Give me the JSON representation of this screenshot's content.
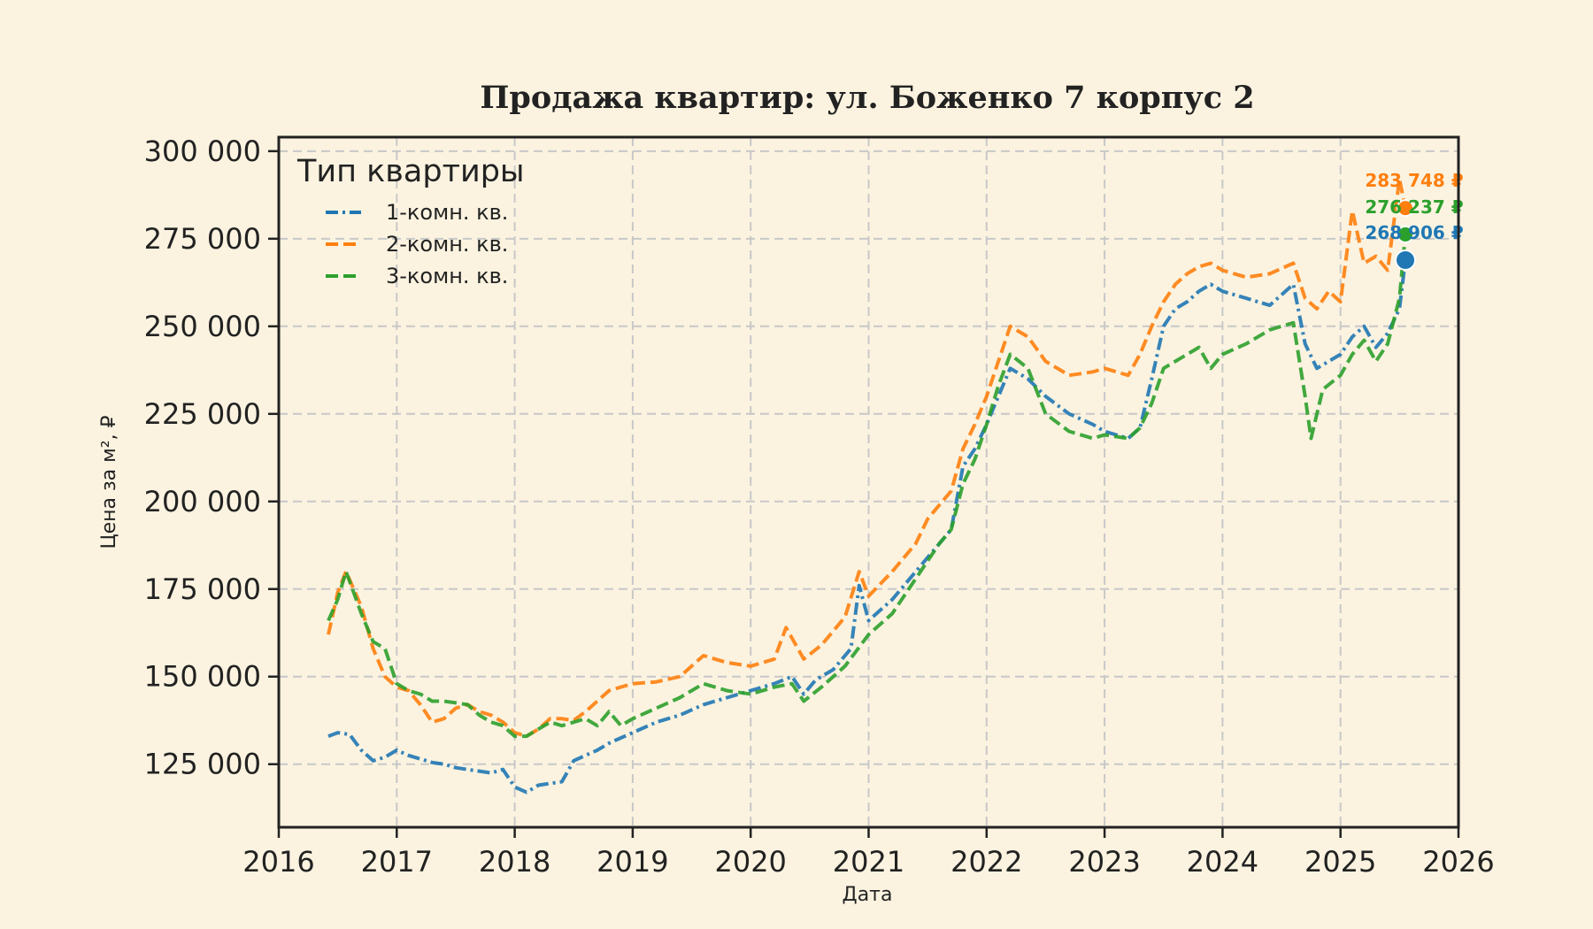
{
  "chart_data": {
    "type": "line",
    "title": "Продажа квартир: ул. Боженко 7 корпус 2",
    "xlabel": "Дата",
    "ylabel": "Цена за м², ₽",
    "xlim": [
      2016.0,
      2026.0
    ],
    "ylim": [
      107000,
      304000
    ],
    "x_ticks": [
      "2016",
      "2017",
      "2018",
      "2019",
      "2020",
      "2021",
      "2022",
      "2023",
      "2024",
      "2025",
      "2026"
    ],
    "y_ticks": [
      {
        "value": 125000,
        "label": "125 000"
      },
      {
        "value": 150000,
        "label": "150 000"
      },
      {
        "value": 175000,
        "label": "175 000"
      },
      {
        "value": 200000,
        "label": "200 000"
      },
      {
        "value": 225000,
        "label": "225 000"
      },
      {
        "value": 250000,
        "label": "250 000"
      },
      {
        "value": 275000,
        "label": "275 000"
      },
      {
        "value": 300000,
        "label": "300 000"
      }
    ],
    "grid": true,
    "legend": {
      "title": "Тип квартиры",
      "placement": "top-left"
    },
    "series": [
      {
        "name": "1-комн. кв.",
        "color": "#1f77b4",
        "dash": "dashdot",
        "points": [
          [
            2016.42,
            133000
          ],
          [
            2016.5,
            134000
          ],
          [
            2016.6,
            133500
          ],
          [
            2016.7,
            129000
          ],
          [
            2016.8,
            126000
          ],
          [
            2016.9,
            127000
          ],
          [
            2017.0,
            129000
          ],
          [
            2017.1,
            127500
          ],
          [
            2017.2,
            126500
          ],
          [
            2017.3,
            125500
          ],
          [
            2017.4,
            125000
          ],
          [
            2017.5,
            124000
          ],
          [
            2017.6,
            123500
          ],
          [
            2017.7,
            123000
          ],
          [
            2017.8,
            122500
          ],
          [
            2017.9,
            123500
          ],
          [
            2018.0,
            118500
          ],
          [
            2018.1,
            117000
          ],
          [
            2018.2,
            119000
          ],
          [
            2018.3,
            119500
          ],
          [
            2018.4,
            120000
          ],
          [
            2018.5,
            126000
          ],
          [
            2018.6,
            127500
          ],
          [
            2018.7,
            129000
          ],
          [
            2018.8,
            131000
          ],
          [
            2018.9,
            132500
          ],
          [
            2019.0,
            134000
          ],
          [
            2019.2,
            137000
          ],
          [
            2019.4,
            139000
          ],
          [
            2019.6,
            142000
          ],
          [
            2019.8,
            144000
          ],
          [
            2020.0,
            146000
          ],
          [
            2020.2,
            148000
          ],
          [
            2020.35,
            150000
          ],
          [
            2020.45,
            145000
          ],
          [
            2020.55,
            149000
          ],
          [
            2020.7,
            152000
          ],
          [
            2020.85,
            158000
          ],
          [
            2020.92,
            176000
          ],
          [
            2021.0,
            166000
          ],
          [
            2021.2,
            172000
          ],
          [
            2021.4,
            180000
          ],
          [
            2021.6,
            188000
          ],
          [
            2021.7,
            192000
          ],
          [
            2021.8,
            210000
          ],
          [
            2021.9,
            215000
          ],
          [
            2022.0,
            222000
          ],
          [
            2022.1,
            230000
          ],
          [
            2022.2,
            238000
          ],
          [
            2022.35,
            235000
          ],
          [
            2022.5,
            230000
          ],
          [
            2022.7,
            225000
          ],
          [
            2022.9,
            222000
          ],
          [
            2023.0,
            220000
          ],
          [
            2023.2,
            218000
          ],
          [
            2023.3,
            221000
          ],
          [
            2023.4,
            235000
          ],
          [
            2023.5,
            250000
          ],
          [
            2023.6,
            255000
          ],
          [
            2023.7,
            257000
          ],
          [
            2023.8,
            260000
          ],
          [
            2023.9,
            262000
          ],
          [
            2024.0,
            260000
          ],
          [
            2024.2,
            258000
          ],
          [
            2024.4,
            256000
          ],
          [
            2024.6,
            262000
          ],
          [
            2024.7,
            245000
          ],
          [
            2024.8,
            238000
          ],
          [
            2024.9,
            240000
          ],
          [
            2025.0,
            242000
          ],
          [
            2025.1,
            247000
          ],
          [
            2025.2,
            250000
          ],
          [
            2025.3,
            244000
          ],
          [
            2025.4,
            248000
          ],
          [
            2025.5,
            255000
          ],
          [
            2025.55,
            268906
          ]
        ]
      },
      {
        "name": "2-комн. кв.",
        "color": "#ff7f0e",
        "dash": "dashed",
        "points": [
          [
            2016.42,
            162000
          ],
          [
            2016.5,
            174000
          ],
          [
            2016.57,
            180000
          ],
          [
            2016.7,
            170000
          ],
          [
            2016.8,
            158000
          ],
          [
            2016.9,
            150000
          ],
          [
            2017.0,
            147000
          ],
          [
            2017.1,
            146000
          ],
          [
            2017.2,
            142000
          ],
          [
            2017.3,
            137000
          ],
          [
            2017.4,
            138000
          ],
          [
            2017.5,
            141000
          ],
          [
            2017.6,
            142000
          ],
          [
            2017.7,
            140000
          ],
          [
            2017.8,
            139000
          ],
          [
            2017.9,
            137000
          ],
          [
            2018.0,
            134000
          ],
          [
            2018.1,
            133000
          ],
          [
            2018.2,
            135000
          ],
          [
            2018.3,
            138000
          ],
          [
            2018.4,
            138000
          ],
          [
            2018.5,
            137500
          ],
          [
            2018.6,
            140000
          ],
          [
            2018.7,
            143000
          ],
          [
            2018.8,
            146000
          ],
          [
            2018.9,
            147000
          ],
          [
            2019.0,
            148000
          ],
          [
            2019.2,
            148500
          ],
          [
            2019.4,
            150000
          ],
          [
            2019.6,
            156000
          ],
          [
            2019.8,
            154000
          ],
          [
            2020.0,
            153000
          ],
          [
            2020.2,
            155000
          ],
          [
            2020.3,
            164000
          ],
          [
            2020.45,
            155000
          ],
          [
            2020.6,
            159000
          ],
          [
            2020.8,
            167000
          ],
          [
            2020.92,
            180000
          ],
          [
            2021.0,
            173000
          ],
          [
            2021.2,
            180000
          ],
          [
            2021.4,
            188000
          ],
          [
            2021.5,
            195000
          ],
          [
            2021.6,
            199000
          ],
          [
            2021.7,
            203000
          ],
          [
            2021.8,
            215000
          ],
          [
            2021.9,
            222000
          ],
          [
            2022.0,
            230000
          ],
          [
            2022.1,
            240000
          ],
          [
            2022.2,
            250000
          ],
          [
            2022.35,
            247000
          ],
          [
            2022.5,
            240000
          ],
          [
            2022.7,
            236000
          ],
          [
            2022.9,
            237000
          ],
          [
            2023.0,
            238000
          ],
          [
            2023.2,
            236000
          ],
          [
            2023.3,
            242000
          ],
          [
            2023.4,
            250000
          ],
          [
            2023.5,
            257000
          ],
          [
            2023.6,
            262000
          ],
          [
            2023.7,
            265000
          ],
          [
            2023.8,
            267000
          ],
          [
            2023.9,
            268000
          ],
          [
            2024.0,
            266000
          ],
          [
            2024.2,
            264000
          ],
          [
            2024.4,
            265000
          ],
          [
            2024.6,
            268000
          ],
          [
            2024.7,
            258000
          ],
          [
            2024.8,
            255000
          ],
          [
            2024.9,
            260000
          ],
          [
            2025.0,
            257000
          ],
          [
            2025.1,
            283000
          ],
          [
            2025.2,
            268000
          ],
          [
            2025.3,
            270000
          ],
          [
            2025.4,
            266000
          ],
          [
            2025.5,
            292000
          ],
          [
            2025.55,
            283748
          ]
        ]
      },
      {
        "name": "3-комн. кв.",
        "color": "#2ca02c",
        "dash": "dashed",
        "points": [
          [
            2016.42,
            166000
          ],
          [
            2016.5,
            172000
          ],
          [
            2016.57,
            180000
          ],
          [
            2016.7,
            168000
          ],
          [
            2016.8,
            160000
          ],
          [
            2016.9,
            158000
          ],
          [
            2017.0,
            148000
          ],
          [
            2017.1,
            146000
          ],
          [
            2017.2,
            145000
          ],
          [
            2017.3,
            143000
          ],
          [
            2017.4,
            143000
          ],
          [
            2017.5,
            142500
          ],
          [
            2017.6,
            142000
          ],
          [
            2017.7,
            139000
          ],
          [
            2017.8,
            137000
          ],
          [
            2017.9,
            136000
          ],
          [
            2018.0,
            133000
          ],
          [
            2018.1,
            133000
          ],
          [
            2018.2,
            135000
          ],
          [
            2018.3,
            137000
          ],
          [
            2018.4,
            136000
          ],
          [
            2018.5,
            137000
          ],
          [
            2018.6,
            138000
          ],
          [
            2018.7,
            136000
          ],
          [
            2018.8,
            140000
          ],
          [
            2018.9,
            136000
          ],
          [
            2019.0,
            138000
          ],
          [
            2019.2,
            141000
          ],
          [
            2019.4,
            144000
          ],
          [
            2019.6,
            148000
          ],
          [
            2019.8,
            146000
          ],
          [
            2020.0,
            145000
          ],
          [
            2020.2,
            147000
          ],
          [
            2020.35,
            148000
          ],
          [
            2020.45,
            143000
          ],
          [
            2020.6,
            147000
          ],
          [
            2020.8,
            153000
          ],
          [
            2021.0,
            162000
          ],
          [
            2021.2,
            168000
          ],
          [
            2021.4,
            178000
          ],
          [
            2021.6,
            188000
          ],
          [
            2021.7,
            192000
          ],
          [
            2021.8,
            205000
          ],
          [
            2021.9,
            212000
          ],
          [
            2022.0,
            222000
          ],
          [
            2022.1,
            233000
          ],
          [
            2022.2,
            242000
          ],
          [
            2022.35,
            238000
          ],
          [
            2022.5,
            225000
          ],
          [
            2022.7,
            220000
          ],
          [
            2022.9,
            218000
          ],
          [
            2023.0,
            219000
          ],
          [
            2023.2,
            218000
          ],
          [
            2023.3,
            221000
          ],
          [
            2023.4,
            228000
          ],
          [
            2023.5,
            238000
          ],
          [
            2023.6,
            240000
          ],
          [
            2023.7,
            242000
          ],
          [
            2023.8,
            244000
          ],
          [
            2023.9,
            238000
          ],
          [
            2024.0,
            242000
          ],
          [
            2024.2,
            245000
          ],
          [
            2024.4,
            249000
          ],
          [
            2024.6,
            251000
          ],
          [
            2024.7,
            230000
          ],
          [
            2024.75,
            218000
          ],
          [
            2024.85,
            232000
          ],
          [
            2025.0,
            236000
          ],
          [
            2025.1,
            242000
          ],
          [
            2025.2,
            246000
          ],
          [
            2025.3,
            240000
          ],
          [
            2025.4,
            245000
          ],
          [
            2025.5,
            258000
          ],
          [
            2025.55,
            276237
          ]
        ]
      }
    ],
    "end_labels": [
      {
        "series": "2-комн. кв.",
        "value": 283748,
        "label": "283 748 ₽",
        "color": "#ff7f0e"
      },
      {
        "series": "3-комн. кв.",
        "value": 276237,
        "label": "276 237 ₽",
        "color": "#2ca02c"
      },
      {
        "series": "1-комн. кв.",
        "value": 268906,
        "label": "268 906 ₽",
        "color": "#1f77b4"
      }
    ]
  }
}
